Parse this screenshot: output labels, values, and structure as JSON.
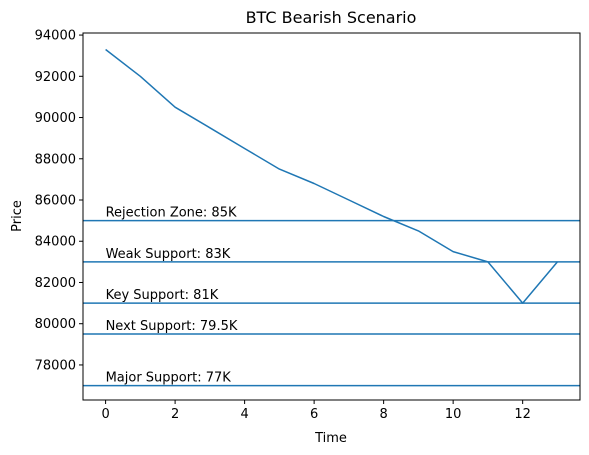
{
  "chart_data": {
    "type": "line",
    "title": "BTC Bearish Scenario",
    "xlabel": "Time",
    "ylabel": "Price",
    "xlim": [
      -0.65,
      13.65
    ],
    "ylim": [
      76300,
      94100
    ],
    "x_ticks": [
      0,
      2,
      4,
      6,
      8,
      10,
      12
    ],
    "y_ticks": [
      78000,
      80000,
      82000,
      84000,
      86000,
      88000,
      90000,
      92000,
      94000
    ],
    "grid": false,
    "series": [
      {
        "color": "#1f77b4",
        "x": [
          0,
          1,
          2,
          3,
          4,
          5,
          6,
          7,
          8,
          9,
          10,
          11,
          12,
          13
        ],
        "values": [
          93300,
          92000,
          90500,
          89500,
          88500,
          87500,
          86800,
          86000,
          85200,
          84500,
          83500,
          83000,
          81000,
          83000
        ]
      }
    ],
    "horizontal_lines": [
      {
        "y": 85000,
        "label": "Rejection Zone: 85K",
        "color": "#1f77b4"
      },
      {
        "y": 83000,
        "label": "Weak Support: 83K",
        "color": "#1f77b4"
      },
      {
        "y": 81000,
        "label": "Key Support: 81K",
        "color": "#1f77b4"
      },
      {
        "y": 79500,
        "label": "Next Support: 79.5K",
        "color": "#1f77b4"
      },
      {
        "y": 77000,
        "label": "Major Support: 77K",
        "color": "#1f77b4"
      }
    ]
  }
}
